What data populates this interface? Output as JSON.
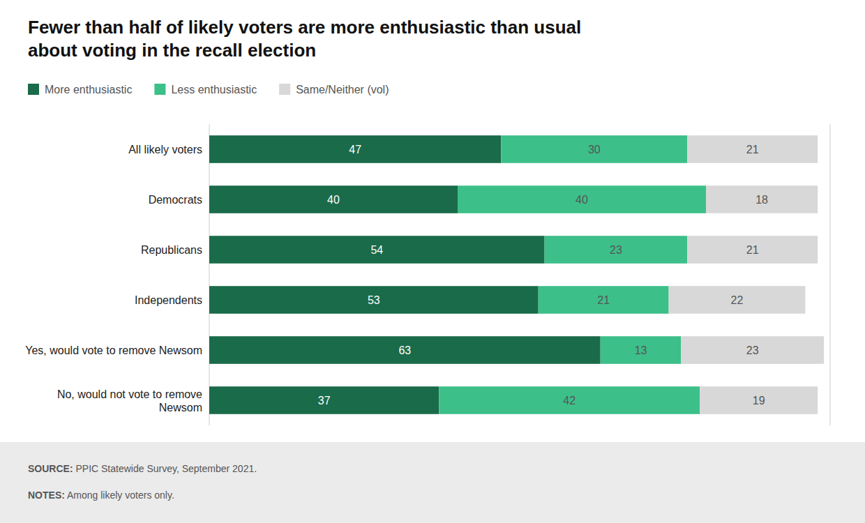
{
  "chart_data": {
    "type": "bar",
    "orientation": "horizontal",
    "stacked": true,
    "data_labels": true,
    "grid": false,
    "legend": "top",
    "tick_labels": "y",
    "title": "Fewer than half of likely voters are more enthusiastic than usual\nabout voting in the recall election",
    "categories": [
      "All likely voters",
      "Democrats",
      "Republicans",
      "Independents",
      "Yes, would vote to remove Newsom",
      "No, would not vote to remove\nNewsom"
    ],
    "series": [
      {
        "name": "More enthusiastic",
        "color": "#1a6b4a",
        "values": [
          47,
          40,
          54,
          53,
          63,
          37
        ]
      },
      {
        "name": "Less enthusiastic",
        "color": "#3dbf8a",
        "values": [
          30,
          40,
          23,
          21,
          13,
          42
        ]
      },
      {
        "name": "Same/Neither (vol)",
        "color": "#d8d8d8",
        "values": [
          21,
          18,
          21,
          22,
          23,
          19
        ]
      }
    ],
    "xlim": [
      0,
      100
    ],
    "annotations": [
      "SOURCE: PPIC Statewide Survey, September 2021.",
      "NOTES: Among likely voters only."
    ]
  }
}
